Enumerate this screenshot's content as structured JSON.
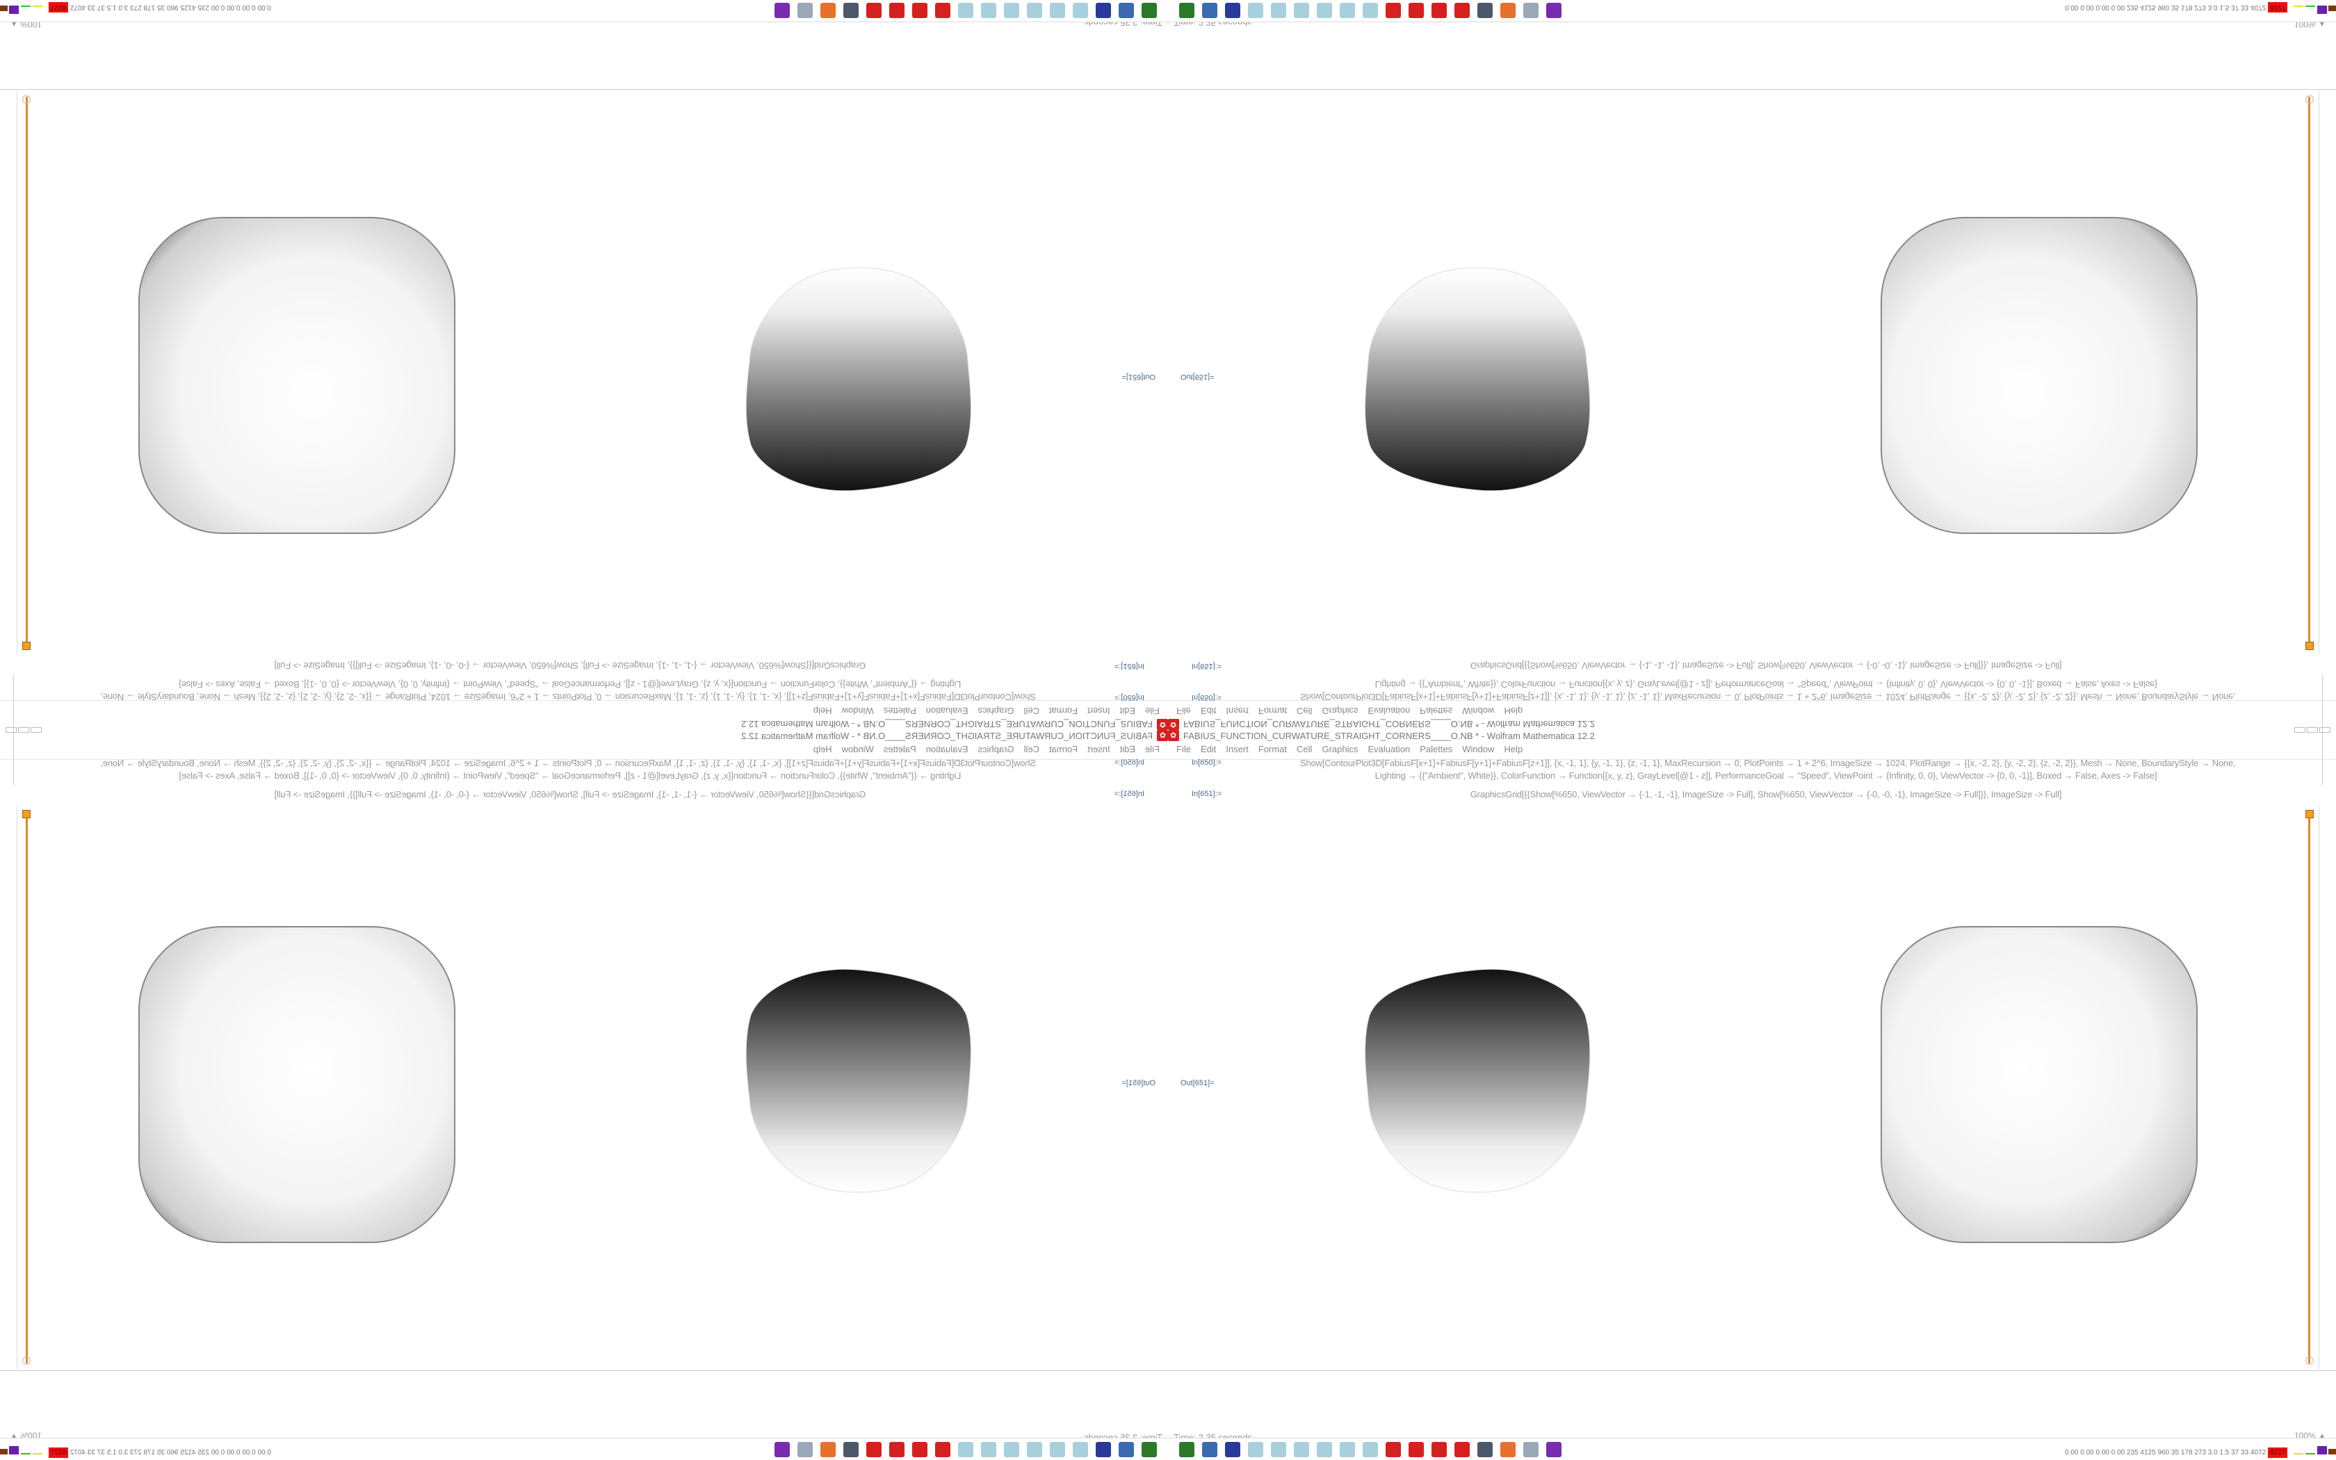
{
  "window": {
    "title": "FABIUS_FUNCTION_CURWATURE_STRAIGHT_CORNERS____O.NB * - Wolfram Mathematica 12.2",
    "controls": [
      "minimize-icon",
      "restore-icon",
      "close-icon"
    ]
  },
  "menu": [
    "File",
    "Edit",
    "Insert",
    "Format",
    "Cell",
    "Graphics",
    "Evaluation",
    "Palettes",
    "Window",
    "Help"
  ],
  "cells": {
    "in1_label": "In[650]:=",
    "in1_line1": "Show[ContourPlot3D[FabiusF[x+1]+FabiusF[y+1]+FabiusF[z+1]], {x, -1, 1}, {y, -1, 1}, {z, -1, 1}, MaxRecursion → 0, PlotPoints → 1 + 2^6, ImageSize → 1024, PlotRange → {{x, -2, 2}, {y, -2, 2}, {z, -2, 2}}, Mesh → None, BoundaryStyle → None,",
    "in1_line2": "Lighting → {{\"Ambient\", White}}, ColorFunction → Function[{x, y, z}, GrayLevel[@1 - z]], PerformanceGoal → \"Speed\", ViewPoint → {Infinity, 0, 0}, ViewVector -> {0, 0, -1}], Boxed → False, Axes -> False]",
    "in2_label": "In[651]:=",
    "in2_line": "GraphicsGrid[{{Show[%650, ViewVector → {-1, -1, -1}, ImageSize -> Full], Show[%650, ViewVector → {-0, -0, -1}, ImageSize -> Full]}}, ImageSize -> Full]",
    "out_label": "Out[651]="
  },
  "colors": {
    "bracket": "#e08a2a",
    "title_icon": "#d62020"
  },
  "status": {
    "time": "Time: 2.35 seconds",
    "zoom": "100%"
  },
  "taskbar": {
    "icons": [
      {
        "name": "terminal-icon",
        "color": "#2a7a2a"
      },
      {
        "name": "monitor-icon",
        "color": "#3a6ab0"
      },
      {
        "name": "floppy-64-icon",
        "color": "#2a3a9a"
      },
      {
        "name": "notepad-icon",
        "color": "#a8d0dc"
      },
      {
        "name": "notepad-icon",
        "color": "#a8d0dc"
      },
      {
        "name": "notepad-icon",
        "color": "#a8d0dc"
      },
      {
        "name": "notepad-icon",
        "color": "#a8d0dc"
      },
      {
        "name": "notepad-icon",
        "color": "#a8d0dc"
      },
      {
        "name": "notepad-icon",
        "color": "#a8d0dc"
      },
      {
        "name": "mathematica-icon",
        "color": "#d62020"
      },
      {
        "name": "mathematica-icon",
        "color": "#d62020"
      },
      {
        "name": "mathematica-icon",
        "color": "#d62020"
      },
      {
        "name": "mathematica-icon",
        "color": "#d62020"
      },
      {
        "name": "webcam-monitor-icon",
        "color": "#4a5a6a"
      },
      {
        "name": "firefox-icon",
        "color": "#e8702a"
      },
      {
        "name": "scroll-icon",
        "color": "#9aa8b8"
      },
      {
        "name": "ghost-icon",
        "color": "#7a2ab0"
      }
    ],
    "tray_stats": "0.00 0.00 0.00 0.00 235 4125 960 35 178 273 3.0 1.5 37 33 4072",
    "tray_alert": "8227"
  }
}
